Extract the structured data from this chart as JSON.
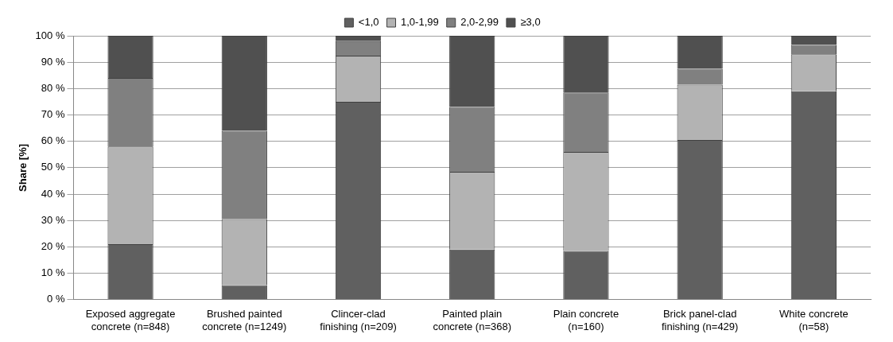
{
  "chart_data": {
    "type": "bar",
    "stacked": true,
    "ylabel": "Share [%]",
    "categories": [
      "Exposed aggregate concrete (n=848)",
      "Brushed painted concrete (n=1249)",
      "Clincer-clad finishing (n=209)",
      "Painted plain concrete (n=368)",
      "Plain concrete (n=160)",
      "Brick panel-clad finishing (n=429)",
      "White concrete (n=58)"
    ],
    "series": [
      {
        "name": "<1,0",
        "color": "#606060",
        "values": [
          21,
          5.5,
          75,
          19,
          18.5,
          60.5,
          79
        ]
      },
      {
        "name": "1,0-1,99",
        "color": "#b3b3b3",
        "values": [
          37,
          25,
          17.5,
          29.5,
          37.5,
          21,
          14
        ]
      },
      {
        "name": "2,0-2,99",
        "color": "#808080",
        "values": [
          26,
          33.5,
          5.5,
          24.5,
          22.5,
          6,
          3.5
        ]
      },
      {
        "name": "≥3,0",
        "color": "#505050",
        "values": [
          16,
          36,
          2,
          27,
          21.5,
          12.5,
          3.5
        ]
      }
    ],
    "ylim": [
      0,
      100
    ],
    "yticks": [
      {
        "value": 0,
        "label": "0 %"
      },
      {
        "value": 10,
        "label": "10 %"
      },
      {
        "value": 20,
        "label": "20 %"
      },
      {
        "value": 30,
        "label": "30 %"
      },
      {
        "value": 40,
        "label": "40 %"
      },
      {
        "value": 50,
        "label": "50 %"
      },
      {
        "value": 60,
        "label": "60 %"
      },
      {
        "value": 70,
        "label": "70 %"
      },
      {
        "value": 80,
        "label": "80 %"
      },
      {
        "value": 90,
        "label": "90 %"
      },
      {
        "value": 100,
        "label": "100 %"
      }
    ],
    "grid": "y",
    "legend": "top"
  }
}
